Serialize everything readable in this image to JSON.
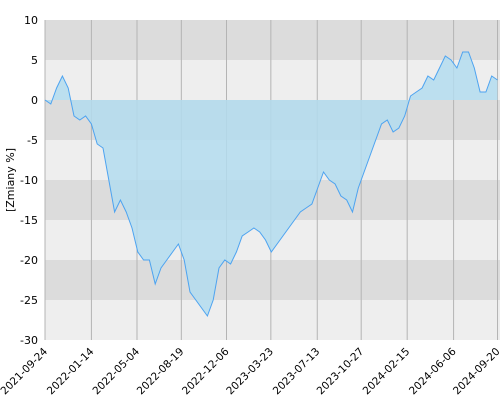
{
  "chart_data": {
    "type": "area",
    "y_label": "[Zmiany %]",
    "x": [
      "2021-09-24",
      "2021-10-08",
      "2021-10-22",
      "2021-11-05",
      "2021-11-19",
      "2021-12-03",
      "2021-12-17",
      "2021-12-31",
      "2022-01-14",
      "2022-01-28",
      "2022-02-11",
      "2022-02-25",
      "2022-03-11",
      "2022-03-25",
      "2022-04-08",
      "2022-04-22",
      "2022-05-06",
      "2022-05-20",
      "2022-06-03",
      "2022-06-17",
      "2022-07-01",
      "2022-07-15",
      "2022-07-29",
      "2022-08-12",
      "2022-08-26",
      "2022-09-09",
      "2022-09-23",
      "2022-10-07",
      "2022-10-21",
      "2022-11-04",
      "2022-11-18",
      "2022-12-02",
      "2022-12-16",
      "2022-12-30",
      "2023-01-13",
      "2023-01-27",
      "2023-02-10",
      "2023-02-24",
      "2023-03-10",
      "2023-03-24",
      "2023-04-07",
      "2023-04-21",
      "2023-05-05",
      "2023-05-19",
      "2023-06-02",
      "2023-06-16",
      "2023-06-30",
      "2023-07-14",
      "2023-07-28",
      "2023-08-11",
      "2023-08-25",
      "2023-09-08",
      "2023-09-22",
      "2023-10-06",
      "2023-10-20",
      "2023-11-03",
      "2023-11-17",
      "2023-12-01",
      "2023-12-15",
      "2023-12-29",
      "2024-01-12",
      "2024-01-26",
      "2024-02-09",
      "2024-02-23",
      "2024-03-08",
      "2024-03-22",
      "2024-04-05",
      "2024-04-19",
      "2024-05-03",
      "2024-05-17",
      "2024-05-31",
      "2024-06-14",
      "2024-06-28",
      "2024-07-12",
      "2024-07-26",
      "2024-08-09",
      "2024-08-23",
      "2024-09-06",
      "2024-09-20"
    ],
    "values": [
      0,
      -0.5,
      1.5,
      3,
      1.5,
      -2,
      -2.5,
      -2,
      -3,
      -5.5,
      -6,
      -10,
      -14,
      -12.5,
      -14,
      -16,
      -19,
      -20,
      -20,
      -23,
      -21,
      -20,
      -19,
      -18,
      -20,
      -24,
      -25,
      -26,
      -27,
      -25,
      -21,
      -20,
      -20.5,
      -19,
      -17,
      -16.5,
      -16,
      -16.5,
      -17.5,
      -19,
      -18,
      -17,
      -16,
      -15,
      -14,
      -13.5,
      -13,
      -11,
      -9,
      -10,
      -10.5,
      -12,
      -12.5,
      -14,
      -11,
      -9,
      -7,
      -5,
      -3,
      -2.5,
      -4,
      -3.5,
      -2,
      0.5,
      1,
      1.5,
      3,
      2.5,
      4,
      5.5,
      5,
      4,
      6,
      6,
      4,
      1,
      1,
      3,
      2.5
    ],
    "color": "#4da3f0",
    "fill": "#b3dcee",
    "xlim": [
      "2021-09-24",
      "2024-09-26"
    ],
    "xticks": [
      "2021-09-24",
      "2022-01-14",
      "2022-05-04",
      "2022-08-19",
      "2022-12-06",
      "2023-03-23",
      "2023-07-13",
      "2023-10-27",
      "2024-02-15",
      "2024-06-06",
      "2024-09-20"
    ],
    "ylim": [
      -30,
      10
    ],
    "yticks": [
      -30,
      -25,
      -20,
      -15,
      -10,
      -5,
      0,
      5,
      10
    ],
    "grid": true
  }
}
